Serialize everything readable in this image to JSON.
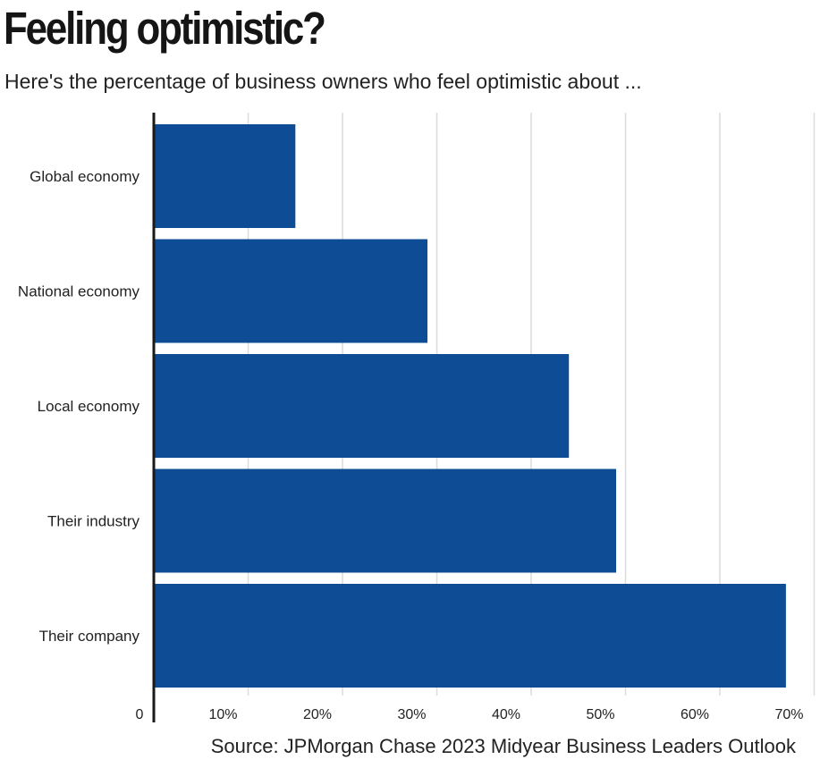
{
  "chart_data": {
    "type": "bar",
    "orientation": "horizontal",
    "title": "Feeling optimistic?",
    "subtitle": "Here's the percentage of business owners who feel optimistic about ...",
    "source": "Source: JPMorgan Chase 2023 Midyear Business Leaders Outlook",
    "categories": [
      "Global economy",
      "National economy",
      "Local economy",
      "Their industry",
      "Their company"
    ],
    "values": [
      15,
      29,
      44,
      49,
      67
    ],
    "xlim": [
      0,
      70
    ],
    "x_ticks": [
      0,
      10,
      20,
      30,
      40,
      50,
      60,
      70
    ],
    "x_tick_labels": [
      "0",
      "10%",
      "20%",
      "30%",
      "40%",
      "50%",
      "60%",
      "70%"
    ],
    "xlabel": "",
    "ylabel": "",
    "grid": true,
    "bar_color": "#0e4c96",
    "grid_color": "#dcdcdc",
    "axis_color": "#1a1a1a"
  }
}
